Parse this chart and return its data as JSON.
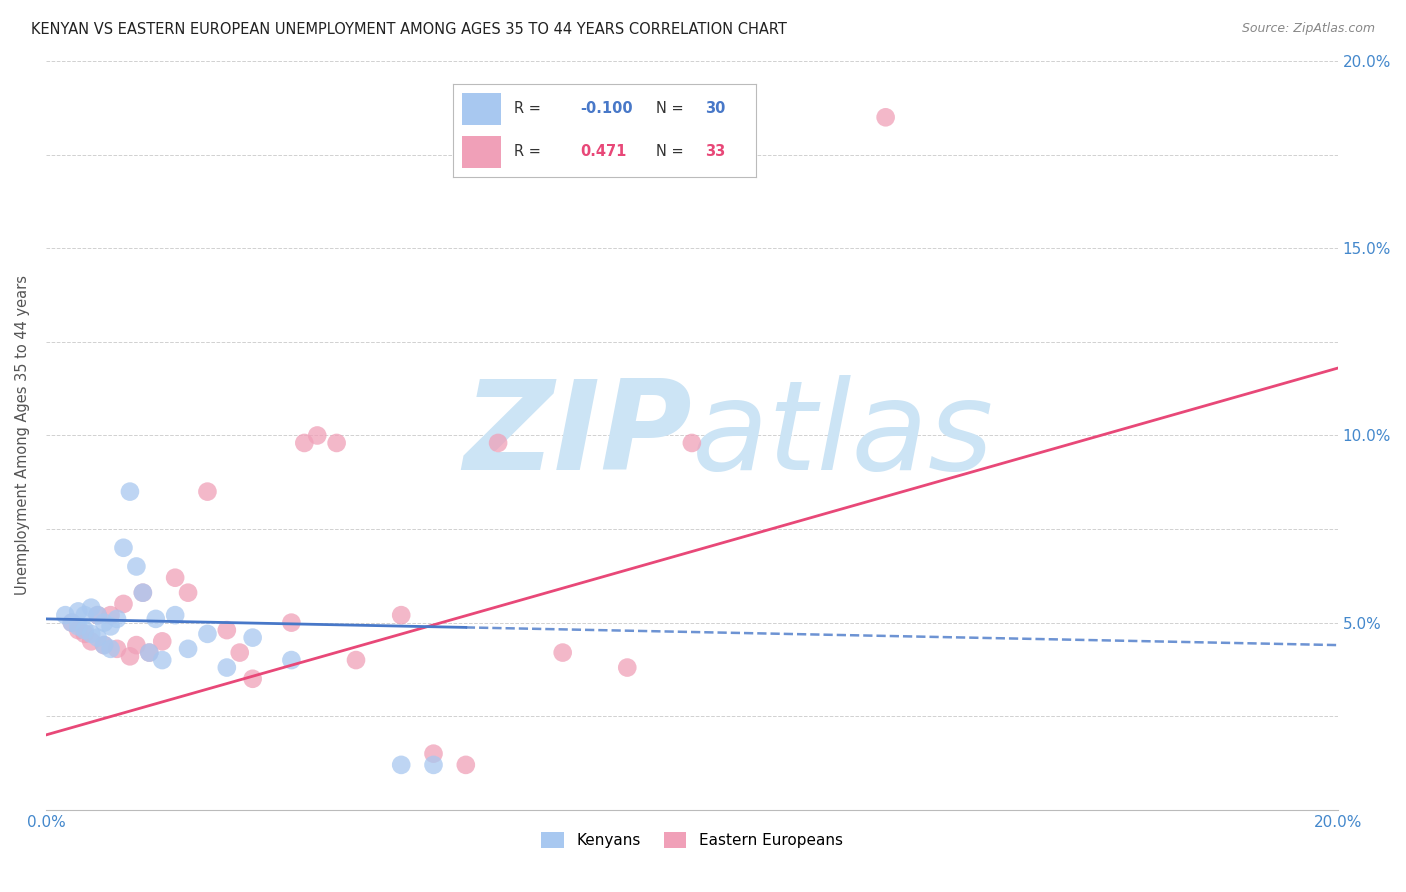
{
  "title": "KENYAN VS EASTERN EUROPEAN UNEMPLOYMENT AMONG AGES 35 TO 44 YEARS CORRELATION CHART",
  "source": "Source: ZipAtlas.com",
  "ylabel": "Unemployment Among Ages 35 to 44 years",
  "xlim": [
    0.0,
    0.2
  ],
  "ylim": [
    0.0,
    0.2
  ],
  "xticks": [
    0.0,
    0.02,
    0.04,
    0.06,
    0.08,
    0.1,
    0.12,
    0.14,
    0.16,
    0.18,
    0.2
  ],
  "yticks": [
    0.0,
    0.025,
    0.05,
    0.075,
    0.1,
    0.125,
    0.15,
    0.175,
    0.2
  ],
  "background_color": "#ffffff",
  "grid_color": "#cccccc",
  "kenyan_color": "#a8c8f0",
  "eastern_european_color": "#f0a0b8",
  "kenyan_line_color": "#4878c8",
  "eastern_european_line_color": "#e84878",
  "watermark_color": "#cce4f5",
  "kenyan_scatter_x": [
    0.003,
    0.004,
    0.005,
    0.005,
    0.006,
    0.006,
    0.007,
    0.007,
    0.008,
    0.008,
    0.009,
    0.009,
    0.01,
    0.01,
    0.011,
    0.012,
    0.013,
    0.014,
    0.015,
    0.016,
    0.017,
    0.018,
    0.02,
    0.022,
    0.025,
    0.028,
    0.032,
    0.038,
    0.055,
    0.06
  ],
  "kenyan_scatter_y": [
    0.052,
    0.05,
    0.053,
    0.049,
    0.052,
    0.048,
    0.054,
    0.047,
    0.052,
    0.046,
    0.05,
    0.044,
    0.049,
    0.043,
    0.051,
    0.07,
    0.085,
    0.065,
    0.058,
    0.042,
    0.051,
    0.04,
    0.052,
    0.043,
    0.047,
    0.038,
    0.046,
    0.04,
    0.012,
    0.012
  ],
  "eastern_scatter_x": [
    0.004,
    0.005,
    0.006,
    0.007,
    0.008,
    0.009,
    0.01,
    0.011,
    0.012,
    0.013,
    0.014,
    0.015,
    0.016,
    0.018,
    0.02,
    0.022,
    0.025,
    0.028,
    0.03,
    0.032,
    0.038,
    0.04,
    0.042,
    0.045,
    0.048,
    0.055,
    0.06,
    0.065,
    0.07,
    0.08,
    0.09,
    0.1,
    0.13
  ],
  "eastern_scatter_y": [
    0.05,
    0.048,
    0.047,
    0.045,
    0.052,
    0.044,
    0.052,
    0.043,
    0.055,
    0.041,
    0.044,
    0.058,
    0.042,
    0.045,
    0.062,
    0.058,
    0.085,
    0.048,
    0.042,
    0.035,
    0.05,
    0.098,
    0.1,
    0.098,
    0.04,
    0.052,
    0.015,
    0.012,
    0.098,
    0.042,
    0.038,
    0.098,
    0.185
  ],
  "kenyan_line_x0": 0.0,
  "kenyan_line_y0": 0.051,
  "kenyan_line_x1": 0.2,
  "kenyan_line_y1": 0.044,
  "eastern_line_x0": 0.0,
  "eastern_line_y0": 0.02,
  "eastern_line_x1": 0.2,
  "eastern_line_y1": 0.118
}
